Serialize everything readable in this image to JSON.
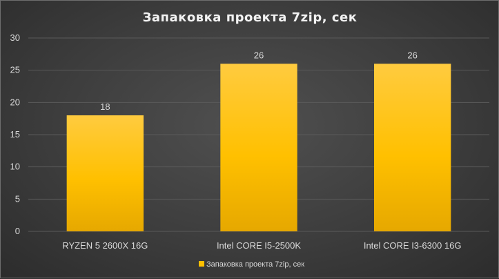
{
  "chart_data": {
    "type": "bar",
    "title": "Запаковка  проекта  7zip,  сек",
    "categories": [
      "RYZEN 5 2600X 16G",
      "Intel CORE I5-2500K",
      "Intel CORE I3-6300 16G"
    ],
    "series": [
      {
        "name": "Запаковка проекта 7zip, сек",
        "values": [
          18,
          26,
          26
        ]
      }
    ],
    "data_labels": [
      "18",
      "26",
      "26"
    ],
    "ylim": [
      0,
      30
    ],
    "yticks": [
      "0",
      "5",
      "10",
      "15",
      "20",
      "25",
      "30"
    ],
    "xlabel": "",
    "ylabel": "",
    "grid": true,
    "legend_position": "bottom",
    "colors": {
      "bar_top": "#FFCB3F",
      "bar_bottom": "#E6A800",
      "grid": "#5a5a5a",
      "background": "#404040"
    }
  }
}
